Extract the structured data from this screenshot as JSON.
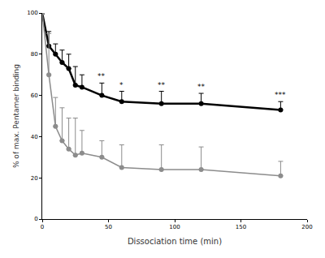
{
  "chart_data": {
    "type": "line",
    "x_label": "Dissociation time (min)",
    "y_label": "% of max. Pentamer binding",
    "x": [
      0,
      5,
      10,
      15,
      20,
      25,
      30,
      45,
      60,
      90,
      120,
      180
    ],
    "series": [
      {
        "color": "#000000",
        "marker": "circle",
        "values": [
          100,
          84,
          80,
          76,
          73,
          65,
          64,
          60,
          57,
          56,
          56,
          53
        ],
        "error": [
          null,
          7,
          5,
          6,
          7,
          9,
          6,
          6,
          5,
          6,
          5,
          4
        ],
        "significance": [
          null,
          null,
          null,
          null,
          null,
          null,
          null,
          "**",
          "*",
          "**",
          "**",
          "***"
        ]
      },
      {
        "color": "#8c8c8c",
        "marker": "circle",
        "values": [
          100,
          70,
          45,
          38,
          34,
          31,
          32,
          30,
          25,
          24,
          24,
          21
        ],
        "error": [
          null,
          20,
          14,
          16,
          15,
          18,
          11,
          8,
          11,
          12,
          11,
          7
        ]
      }
    ],
    "xlim": [
      0,
      200
    ],
    "xticks": [
      0,
      50,
      100,
      150,
      200
    ],
    "ylim": [
      0,
      100
    ],
    "yticks": [
      0,
      20,
      40,
      60,
      80,
      100
    ],
    "grid": false
  }
}
